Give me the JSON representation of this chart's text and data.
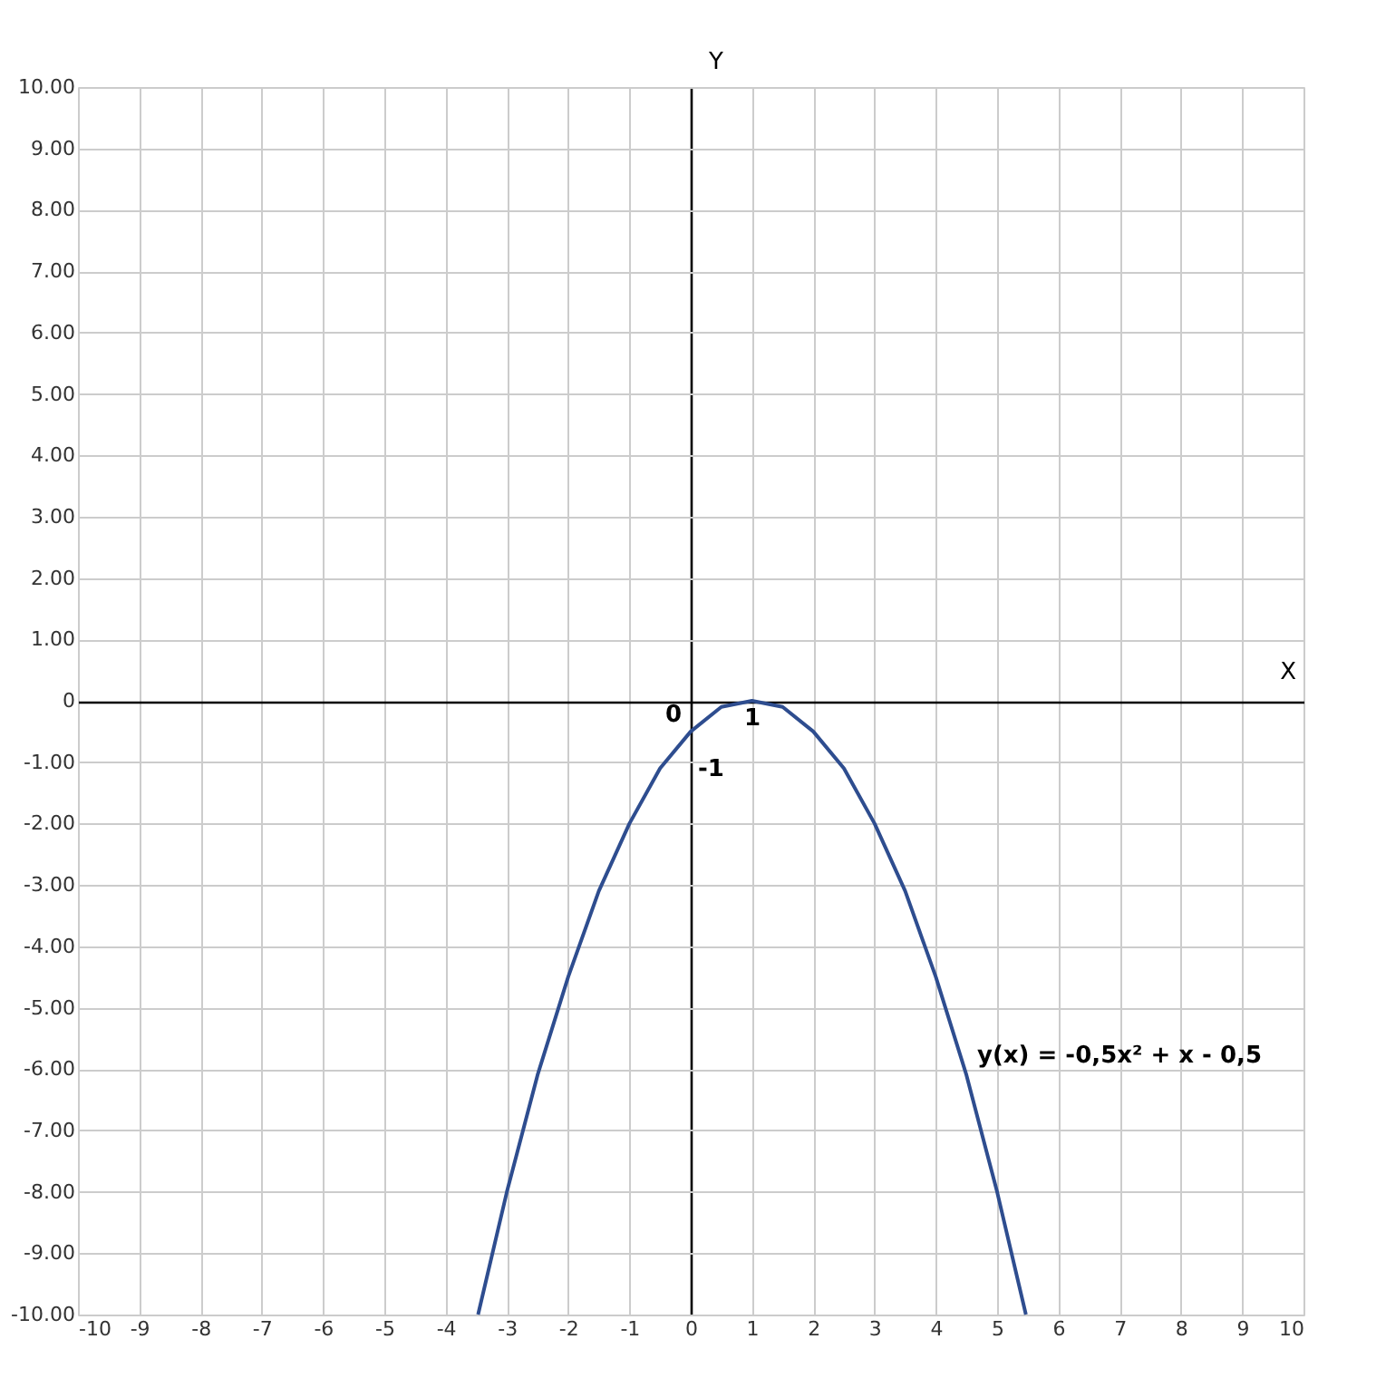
{
  "chart_data": {
    "type": "line",
    "xlabel": "X",
    "ylabel": "Y",
    "xlim": [
      -10,
      10
    ],
    "ylim": [
      -10,
      10
    ],
    "xticks": [
      -10,
      -9,
      -8,
      -7,
      -6,
      -5,
      -4,
      -3,
      -2,
      -1,
      0,
      1,
      2,
      3,
      4,
      5,
      6,
      7,
      8,
      9,
      10
    ],
    "yticks": [
      {
        "value": -10,
        "label": "-10.00"
      },
      {
        "value": -9,
        "label": "-9.00"
      },
      {
        "value": -8,
        "label": "-8.00"
      },
      {
        "value": -7,
        "label": "-7.00"
      },
      {
        "value": -6,
        "label": "-6.00"
      },
      {
        "value": -5,
        "label": "-5.00"
      },
      {
        "value": -4,
        "label": "-4.00"
      },
      {
        "value": -3,
        "label": "-3.00"
      },
      {
        "value": -2,
        "label": "-2.00"
      },
      {
        "value": -1,
        "label": "-1.00"
      },
      0,
      {
        "value": 1,
        "label": "1.00"
      },
      {
        "value": 2,
        "label": "2.00"
      },
      {
        "value": 3,
        "label": "3.00"
      },
      {
        "value": 4,
        "label": "4.00"
      },
      {
        "value": 5,
        "label": "5.00"
      },
      {
        "value": 6,
        "label": "6.00"
      },
      {
        "value": 7,
        "label": "7.00"
      },
      {
        "value": 8,
        "label": "8.00"
      },
      {
        "value": 9,
        "label": "9.00"
      },
      {
        "value": 10,
        "label": "10.00"
      }
    ],
    "grid": true,
    "series": [
      {
        "color": "#2e4d8f",
        "x": [
          -3.47,
          -3,
          -2.5,
          -2,
          -1.5,
          -1,
          -0.5,
          0,
          0.5,
          1,
          1.5,
          2,
          2.5,
          3,
          3.5,
          4,
          4.5,
          5,
          5.47
        ],
        "values": [
          -10,
          -8,
          -6.1,
          -4.5,
          -3.1,
          -2,
          -1.1,
          -0.5,
          -0.1,
          0,
          -0.1,
          -0.5,
          -1.1,
          -2,
          -3.1,
          -4.5,
          -6.1,
          -8,
          -10
        ]
      }
    ],
    "annotations": [
      "0",
      "1",
      "-1",
      "y(x) = -0,5x² + x - 0,5"
    ]
  }
}
